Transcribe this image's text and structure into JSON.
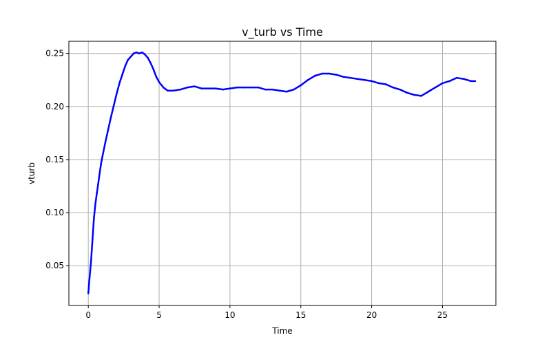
{
  "chart_data": {
    "type": "line",
    "title": "v_turb vs Time",
    "xlabel": "Time",
    "ylabel": "vturb",
    "xlim": [
      -1.37,
      28.77
    ],
    "ylim": [
      0.0125,
      0.2615
    ],
    "xticks": [
      0,
      5,
      10,
      15,
      20,
      25
    ],
    "xtick_labels": [
      "0",
      "5",
      "10",
      "15",
      "20",
      "25"
    ],
    "yticks": [
      0.05,
      0.1,
      0.15,
      0.2,
      0.25
    ],
    "ytick_labels": [
      "0.05",
      "0.10",
      "0.15",
      "0.20",
      "0.25"
    ],
    "grid": true,
    "legend": "none",
    "series": [
      {
        "color": "#0000ff",
        "x": [
          0.0,
          0.1,
          0.2,
          0.3,
          0.4,
          0.5,
          0.6,
          0.7,
          0.8,
          0.9,
          1.0,
          1.2,
          1.4,
          1.6,
          1.8,
          2.0,
          2.2,
          2.4,
          2.6,
          2.8,
          3.0,
          3.2,
          3.4,
          3.6,
          3.8,
          4.0,
          4.2,
          4.4,
          4.6,
          4.8,
          5.0,
          5.3,
          5.6,
          6.0,
          6.5,
          7.0,
          7.5,
          8.0,
          8.5,
          9.0,
          9.5,
          10.0,
          10.5,
          11.0,
          11.5,
          12.0,
          12.5,
          13.0,
          13.5,
          14.0,
          14.5,
          15.0,
          15.5,
          16.0,
          16.5,
          17.0,
          17.5,
          18.0,
          18.5,
          19.0,
          19.5,
          20.0,
          20.5,
          21.0,
          21.5,
          22.0,
          22.5,
          23.0,
          23.5,
          24.0,
          24.5,
          25.0,
          25.5,
          26.0,
          26.5,
          27.0,
          27.3
        ],
        "y": [
          0.024,
          0.04,
          0.055,
          0.075,
          0.095,
          0.108,
          0.118,
          0.127,
          0.137,
          0.146,
          0.153,
          0.166,
          0.178,
          0.19,
          0.201,
          0.212,
          0.222,
          0.23,
          0.238,
          0.244,
          0.247,
          0.25,
          0.251,
          0.25,
          0.251,
          0.249,
          0.246,
          0.241,
          0.235,
          0.228,
          0.223,
          0.218,
          0.215,
          0.215,
          0.216,
          0.218,
          0.219,
          0.217,
          0.217,
          0.217,
          0.216,
          0.217,
          0.218,
          0.218,
          0.218,
          0.218,
          0.216,
          0.216,
          0.215,
          0.214,
          0.216,
          0.22,
          0.225,
          0.229,
          0.231,
          0.231,
          0.23,
          0.228,
          0.227,
          0.226,
          0.225,
          0.224,
          0.222,
          0.221,
          0.218,
          0.216,
          0.213,
          0.211,
          0.21,
          0.214,
          0.218,
          0.222,
          0.224,
          0.227,
          0.226,
          0.224,
          0.224
        ]
      }
    ]
  }
}
